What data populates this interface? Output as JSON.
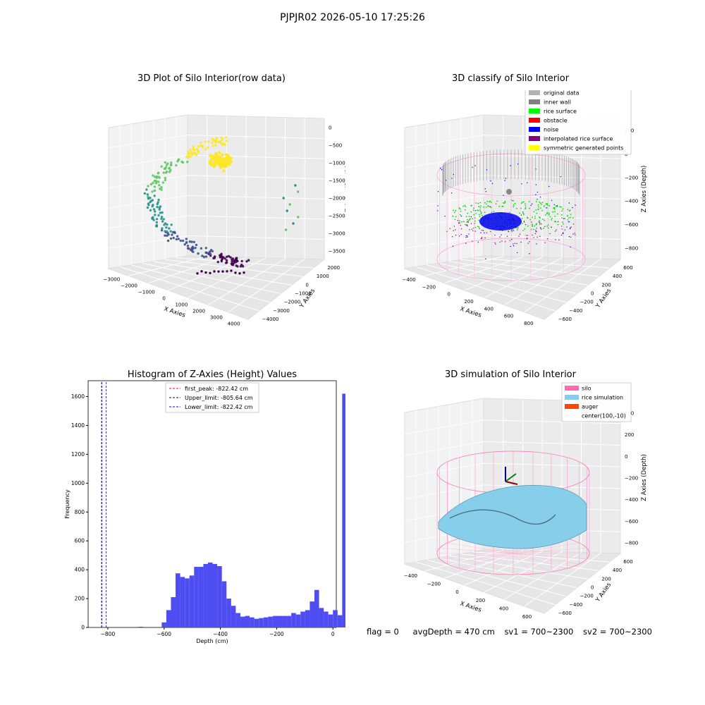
{
  "suptitle": "PJPJR02 2026-05-10 17:25:26",
  "footer": {
    "flag": "flag = 0",
    "avg": "avgDepth = 470 cm",
    "sv1": "sv1 = 700~2300",
    "sv2": "sv2 = 700~2300"
  },
  "chart_data": [
    {
      "type": "scatter",
      "title": "3D Plot of Silo Interior(row data)",
      "xlabel": "X Axies",
      "ylabel": "Y Axies",
      "zlabel": "Z Axies (Depth)",
      "x_ticks": [
        "−3000",
        "−2000",
        "−1000",
        "0",
        "1000",
        "2000",
        "3000",
        "4000"
      ],
      "y_ticks": [
        "−4000",
        "−3000",
        "−2000",
        "−1000",
        "0",
        "1000",
        "2000"
      ],
      "z_ticks": [
        "0",
        "−500",
        "−1000",
        "−1500",
        "−2000",
        "−2500",
        "−3000",
        "−3500"
      ],
      "colormap": [
        "#440154",
        "#3b528b",
        "#21918c",
        "#5ec962",
        "#fde725"
      ],
      "grid": true
    },
    {
      "type": "scatter",
      "title": "3D classify of Silo Interior",
      "xlabel": "X Axies",
      "ylabel": "Y Axies",
      "zlabel": "Z Axies (Depth)",
      "x_ticks": [
        "−400",
        "−200",
        "0",
        "200",
        "400",
        "600",
        "800"
      ],
      "y_ticks": [
        "−600",
        "−400",
        "−200",
        "0",
        "200",
        "400",
        "600"
      ],
      "z_ticks": [
        "200",
        "0",
        "−200",
        "−400",
        "−600",
        "−800"
      ],
      "legend": [
        {
          "label": "original data",
          "color": "#b3b3b3"
        },
        {
          "label": "inner wall",
          "color": "#808080"
        },
        {
          "label": "rice surface",
          "color": "#00ff00"
        },
        {
          "label": "obstacle",
          "color": "#ff0000"
        },
        {
          "label": "noise",
          "color": "#0000ff"
        },
        {
          "label": "interpolated rice surface",
          "color": "#800080"
        },
        {
          "label": "symmetric generated points",
          "color": "#ffff00"
        }
      ],
      "legend_position": "top-right",
      "grid": true
    },
    {
      "type": "bar",
      "title": "Histogram of Z-Axies (Height) Values",
      "xlabel": "Depth (cm)",
      "ylabel": "Frequency",
      "xlim": [
        -870,
        12
      ],
      "ylim": [
        0,
        1710
      ],
      "x_ticks": [
        -800,
        -600,
        -400,
        -200,
        0
      ],
      "x_tick_labels": [
        "−800",
        "−600",
        "−400",
        "−200",
        "0"
      ],
      "y_ticks": [
        0,
        200,
        400,
        600,
        800,
        1000,
        1200,
        1400,
        1600
      ],
      "bar_color": "#4d4df2",
      "bin_start": -822.42,
      "bin_width": 16.45,
      "values": [
        0,
        0,
        0,
        0,
        0,
        0,
        0,
        0,
        5,
        0,
        0,
        0,
        0,
        35,
        120,
        210,
        375,
        350,
        340,
        360,
        420,
        420,
        440,
        450,
        440,
        425,
        320,
        200,
        150,
        100,
        75,
        80,
        70,
        60,
        65,
        70,
        75,
        80,
        80,
        80,
        80,
        100,
        90,
        110,
        120,
        180,
        260,
        135,
        110,
        90,
        120,
        85,
        1620
      ],
      "vlines": [
        {
          "label": "first_peak: -822.42 cm",
          "x": -822.42,
          "color": "#ff0000"
        },
        {
          "label": "Upper_limit: -805.64 cm",
          "x": -805.64,
          "color": "#00008b"
        },
        {
          "label": "Lower_limit: -822.42 cm",
          "x": -822.42,
          "color": "#0000ff"
        }
      ],
      "legend_position": "top-center"
    },
    {
      "type": "area",
      "title": "3D simulation of Silo Interior",
      "xlabel": "X Axies",
      "ylabel": "Y Axies",
      "zlabel": "Z Axies (Depth)",
      "x_ticks": [
        "−400",
        "−200",
        "0",
        "200",
        "400",
        "600"
      ],
      "y_ticks": [
        "−600",
        "−400",
        "−200",
        "0",
        "200",
        "400",
        "600"
      ],
      "z_ticks": [
        "400",
        "200",
        "0",
        "−200",
        "−400",
        "−600",
        "−800"
      ],
      "legend": [
        {
          "label": "silo",
          "color": "#ff69b4"
        },
        {
          "label": "rice simulation",
          "color": "#87ceeb"
        },
        {
          "label": "auger",
          "color": "#ff4500"
        },
        {
          "label": "center(100,-10)",
          "color": ""
        }
      ],
      "legend_position": "top-right",
      "grid": true
    }
  ]
}
